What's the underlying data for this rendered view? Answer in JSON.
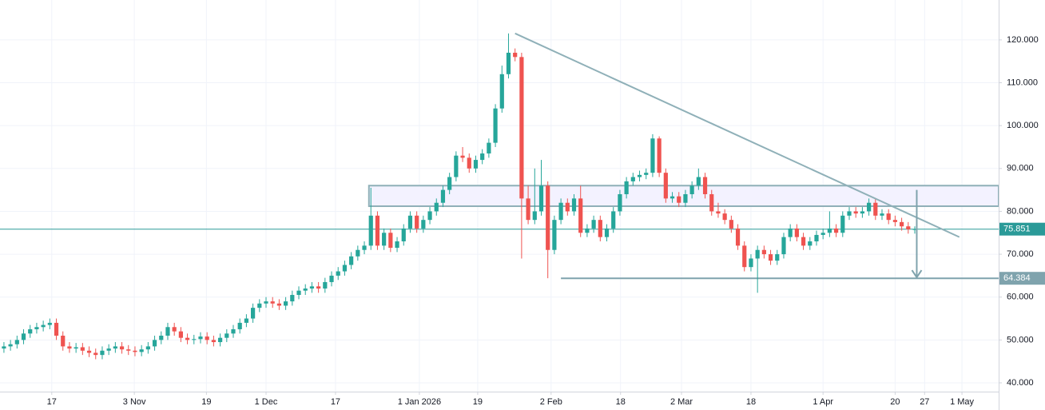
{
  "chart_data": {
    "type": "candlestick",
    "xlim": [
      -0.6,
      151.8
    ],
    "ylim": [
      37.95,
      129.3
    ],
    "grid": true,
    "up_color": "#26a69a",
    "down_color": "#ef5350",
    "xticks": [
      {
        "value": 7.3,
        "label": "17"
      },
      {
        "value": 19.9,
        "label": "3 Nov"
      },
      {
        "value": 30.9,
        "label": "19"
      },
      {
        "value": 40,
        "label": "1 Dec"
      },
      {
        "value": 50.6,
        "label": "17"
      },
      {
        "value": 63.4,
        "label": "1 Jan 2026"
      },
      {
        "value": 72.3,
        "label": "19"
      },
      {
        "value": 83.5,
        "label": "2 Feb"
      },
      {
        "value": 94.1,
        "label": "18"
      },
      {
        "value": 103.4,
        "label": "2 Mar"
      },
      {
        "value": 114,
        "label": "18"
      },
      {
        "value": 125,
        "label": "1 Apr"
      },
      {
        "value": 136,
        "label": "20"
      },
      {
        "value": 140.5,
        "label": "27"
      },
      {
        "value": 146.2,
        "label": "1 May"
      }
    ],
    "yticks": [
      {
        "value": 40,
        "label": "40.000"
      },
      {
        "value": 50,
        "label": "50.000"
      },
      {
        "value": 60,
        "label": "60.000"
      },
      {
        "value": 70,
        "label": "70.000"
      },
      {
        "value": 80,
        "label": "80.000"
      },
      {
        "value": 90,
        "label": "90.000"
      },
      {
        "value": 100,
        "label": "100.000"
      },
      {
        "value": 110,
        "label": "110.000"
      },
      {
        "value": 120,
        "label": "120.000"
      }
    ],
    "open": [
      48,
      48.5,
      49,
      50,
      51.5,
      52.5,
      53,
      53.5,
      54,
      51,
      48.5,
      48,
      48.3,
      47.5,
      47,
      46.5,
      47.5,
      48,
      48.5,
      47.8,
      47.5,
      47.2,
      47.8,
      48.5,
      50,
      51,
      53,
      52,
      50.5,
      50,
      50.2,
      50.8,
      50,
      49.5,
      50.5,
      51.5,
      52.5,
      54,
      55,
      57.5,
      58.5,
      59,
      58.5,
      58,
      59,
      60.5,
      61.5,
      62,
      62.5,
      62,
      63.5,
      65,
      66,
      67.5,
      69.5,
      71,
      72,
      79,
      72,
      75,
      71.5,
      73,
      76,
      79,
      76,
      78,
      80,
      82,
      85,
      88,
      93,
      92.5,
      90,
      92,
      93.5,
      96,
      104,
      112,
      117,
      116,
      83,
      78,
      80,
      86,
      71,
      78,
      82,
      80,
      83,
      75,
      76,
      78,
      74,
      76,
      80,
      84,
      87,
      88,
      88.5,
      89,
      97,
      89,
      83,
      83.5,
      82,
      84,
      86,
      88,
      84,
      80,
      79.5,
      78,
      76,
      72,
      67,
      69,
      71,
      70,
      68.5,
      70,
      74,
      76,
      74,
      72,
      73,
      74.5,
      75,
      76,
      75,
      79,
      80,
      79.5,
      80,
      82,
      79,
      79.5,
      78,
      77.5,
      76.5,
      75.8
    ],
    "high": [
      49.5,
      50,
      51,
      52.5,
      53.5,
      54,
      54.5,
      55,
      55,
      52,
      49.5,
      49.3,
      49.3,
      48.5,
      48,
      48.5,
      49,
      49.5,
      49.5,
      48.8,
      48.5,
      48.8,
      49.5,
      51,
      52,
      54,
      54,
      53,
      51.5,
      51.2,
      51.8,
      51.8,
      51,
      51.5,
      52.5,
      53.5,
      55,
      56,
      58.5,
      59.5,
      60,
      60,
      59.5,
      60,
      61.5,
      62.5,
      63,
      63.5,
      63.5,
      64.5,
      66,
      67,
      68.5,
      70.5,
      72,
      73,
      85.5,
      80,
      76,
      76,
      74,
      77,
      80,
      80,
      79,
      81,
      83,
      86,
      89,
      94,
      95,
      93.5,
      93,
      94.5,
      97,
      105,
      114,
      121.5,
      118,
      117,
      86,
      90,
      92,
      87,
      79,
      83,
      83,
      84,
      86,
      77,
      79,
      79,
      77,
      81,
      85,
      88,
      89,
      89.5,
      90,
      98,
      97.5,
      90,
      84.5,
      84.5,
      85,
      87,
      90,
      89,
      85,
      82,
      80.5,
      79,
      77,
      73,
      70,
      72,
      72,
      71,
      71,
      75,
      77,
      77,
      75,
      74,
      75.5,
      76,
      80,
      77,
      80,
      81,
      81,
      81,
      83,
      83,
      80.5,
      80.5,
      79,
      78.5,
      77.5,
      76.5
    ],
    "low": [
      47,
      47.5,
      48,
      49,
      50.5,
      51.5,
      52,
      52.5,
      50,
      47.5,
      47,
      47,
      46.5,
      46,
      45.5,
      45.5,
      46.5,
      47,
      46.8,
      46.5,
      46.2,
      46.2,
      46.8,
      47.5,
      49,
      50,
      51,
      49.5,
      49,
      49,
      49.2,
      49,
      48.5,
      48.5,
      49.5,
      50.5,
      51.5,
      53,
      54,
      56.5,
      57.5,
      57.5,
      57,
      57,
      58,
      59.5,
      60.5,
      61,
      61,
      61,
      62.5,
      64,
      65,
      66.5,
      68.5,
      70,
      71,
      71,
      71,
      70.5,
      70.5,
      72,
      75,
      75,
      75,
      77,
      79,
      81,
      84,
      87,
      91.5,
      89,
      89,
      91,
      92.5,
      95,
      103,
      111,
      115,
      69,
      77,
      77,
      79,
      64.4,
      70,
      77,
      79,
      79,
      74,
      74,
      75,
      73,
      73,
      75,
      79,
      83,
      86,
      87,
      87.5,
      88,
      88,
      82,
      82,
      81,
      81,
      83,
      85,
      83,
      79,
      78.5,
      77,
      75,
      71,
      66,
      66,
      61,
      69,
      67.5,
      67.5,
      69,
      73,
      73,
      71,
      71,
      72,
      73.5,
      74,
      74,
      74,
      78,
      78.5,
      78.5,
      79,
      78,
      78,
      77,
      76.5,
      75.5,
      74.8,
      74.8
    ],
    "close": [
      48.5,
      49,
      50,
      51.5,
      52.5,
      53,
      53.5,
      54,
      51,
      48.5,
      48,
      48.3,
      47.5,
      47,
      46.5,
      47.5,
      48,
      48.5,
      47.8,
      47.5,
      47.2,
      47.8,
      48.5,
      50,
      51,
      53,
      52,
      50.5,
      50,
      50.2,
      50.8,
      50,
      49.5,
      50.5,
      51.5,
      52.5,
      54,
      55,
      57.5,
      58.5,
      59,
      58.5,
      58,
      59,
      60.5,
      61.5,
      62,
      62.5,
      62,
      63.5,
      65,
      66,
      67.5,
      69.5,
      71,
      72,
      79,
      72,
      75,
      71.5,
      73,
      76,
      79,
      76,
      78,
      80,
      82,
      85,
      88,
      93,
      92.5,
      90,
      92,
      93.5,
      96,
      104,
      112,
      117,
      116,
      83,
      78,
      80,
      86,
      71,
      78,
      82,
      80,
      83,
      75,
      76,
      78,
      74,
      76,
      80,
      84,
      87,
      88,
      88.5,
      89,
      97,
      89,
      83,
      83.5,
      82,
      84,
      86,
      88,
      84,
      80,
      79.5,
      78,
      76,
      72,
      67,
      69,
      71,
      70,
      68.5,
      70,
      74,
      76,
      74,
      72,
      73,
      74.5,
      75,
      76,
      75,
      79,
      80,
      79.5,
      80,
      82,
      79,
      79.5,
      78,
      77.5,
      76.5,
      75.8,
      75.851
    ],
    "current_price": 75.851,
    "support": {
      "value": 64.384,
      "x_start": 85
    },
    "zone": {
      "low": 81.2,
      "high": 86,
      "x_start": 55.7
    },
    "trendline": {
      "x": [
        78,
        145.8
      ],
      "y": [
        121.5,
        74
      ]
    },
    "arrow": {
      "x": 139.3,
      "y": [
        85,
        64.6
      ]
    }
  }
}
